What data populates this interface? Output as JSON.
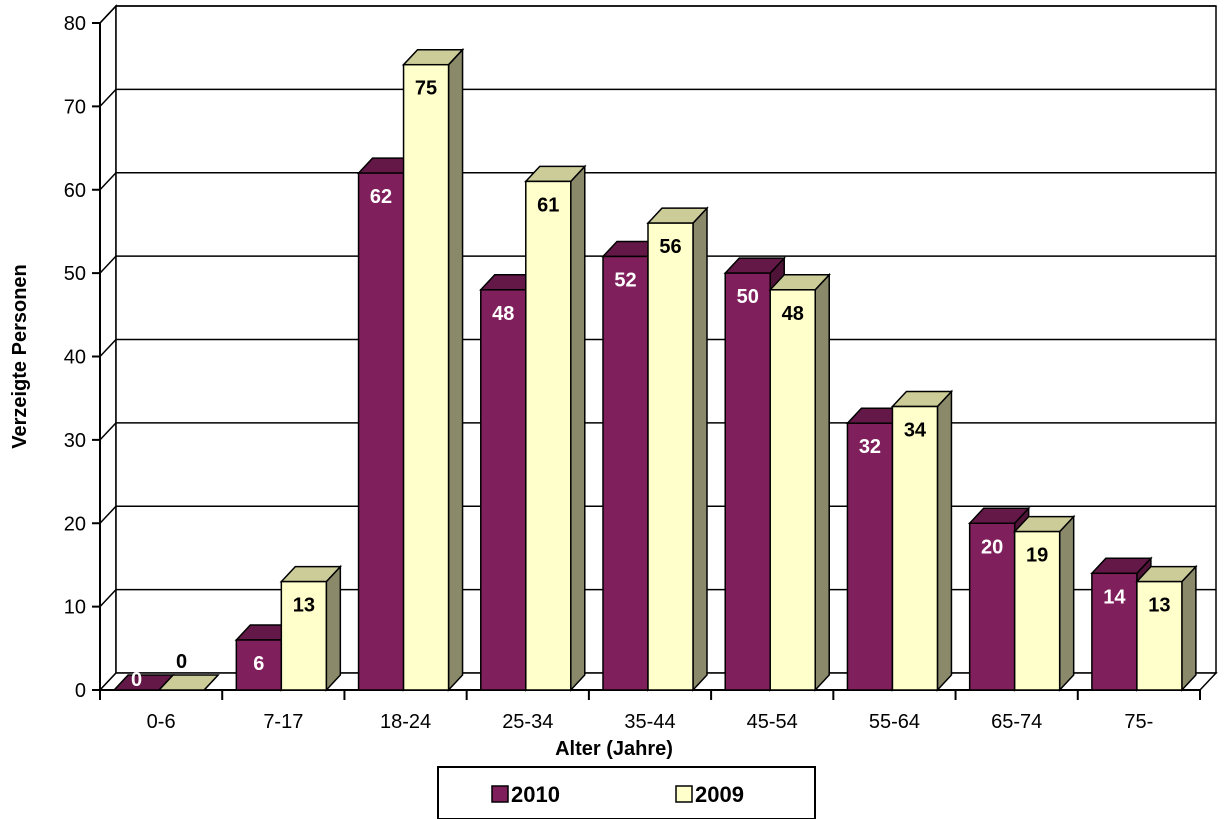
{
  "chart_data": {
    "type": "bar",
    "style": "3d-clustered-column",
    "title": "",
    "xlabel": "Alter (Jahre)",
    "ylabel": "Verzeigte Personen",
    "ylim": [
      0,
      80
    ],
    "yticks": [
      0,
      10,
      20,
      30,
      40,
      50,
      60,
      70,
      80
    ],
    "grid": true,
    "legend_position": "bottom-center",
    "categories": [
      "0-6",
      "7-17",
      "18-24",
      "25-34",
      "35-44",
      "45-54",
      "55-64",
      "65-74",
      "75-"
    ],
    "series": [
      {
        "name": "2010",
        "values": [
          0,
          6,
          62,
          48,
          52,
          50,
          32,
          20,
          14
        ],
        "color": "#7f1f5b",
        "label_color": "#ffffff"
      },
      {
        "name": "2009",
        "values": [
          0,
          13,
          75,
          61,
          56,
          48,
          34,
          19,
          13
        ],
        "color": "#ffffcc",
        "label_color": "#000000"
      }
    ]
  }
}
